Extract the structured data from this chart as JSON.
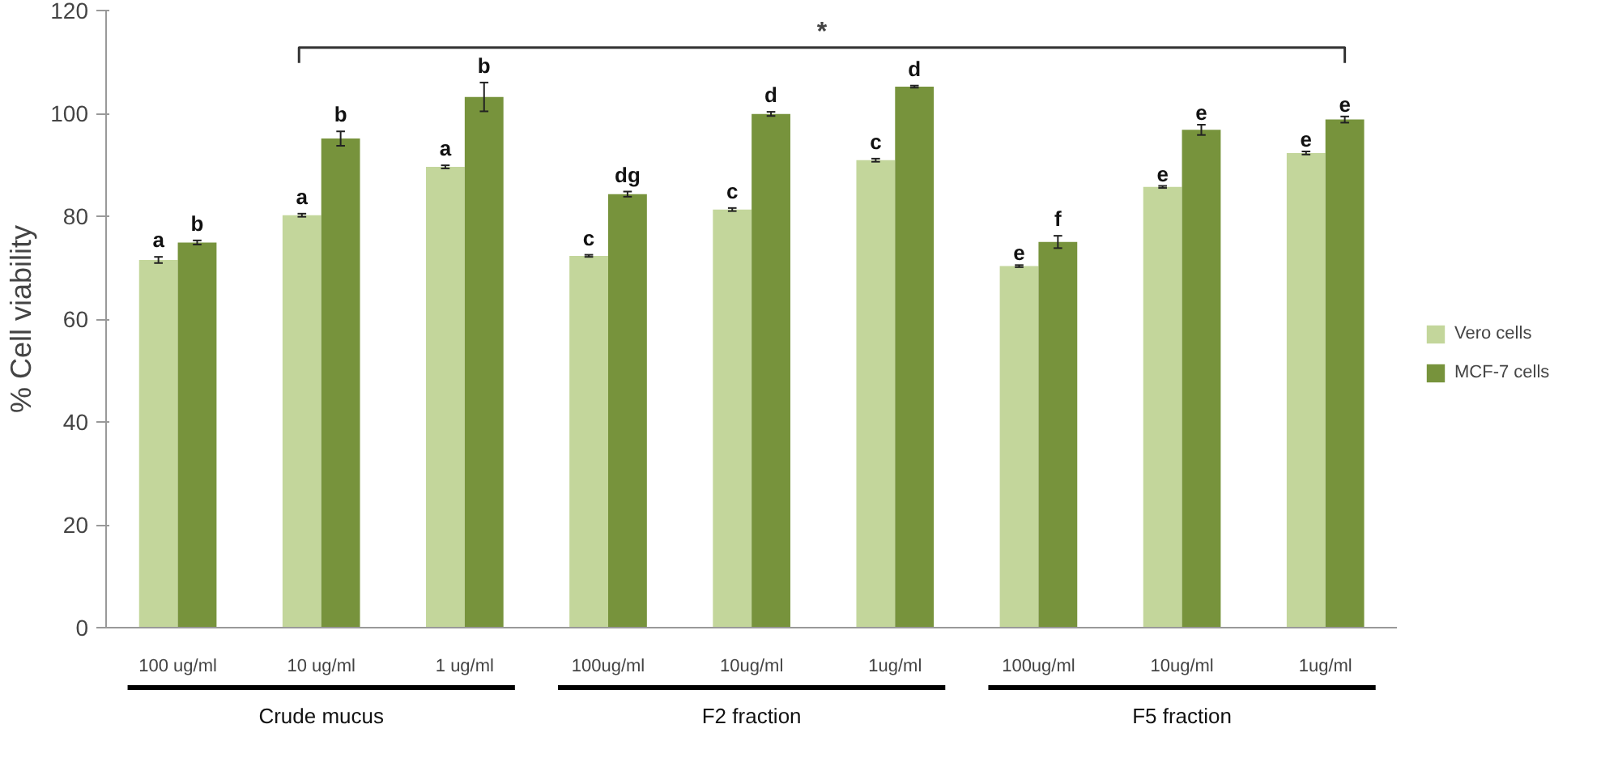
{
  "chart_data": {
    "type": "bar",
    "ylabel": "% Cell viability",
    "categories": [
      "100 ug/ml",
      "10 ug/ml",
      "1 ug/ml",
      "100ug/ml",
      "10ug/ml",
      "1ug/ml",
      "100ug/ml",
      "10ug/ml",
      "1ug/ml"
    ],
    "series": [
      {
        "name": "Vero cells",
        "color": "#c3d69b",
        "values": [
          71.5,
          80.2,
          89.6,
          72.3,
          81.3,
          90.9,
          70.3,
          85.7,
          92.3
        ],
        "errors": [
          0.6,
          0.3,
          0.3,
          0.2,
          0.3,
          0.3,
          0.2,
          0.2,
          0.3
        ],
        "value_labels": [
          "a",
          "a",
          "a",
          "c",
          "c",
          "c",
          "e",
          "e",
          "e"
        ]
      },
      {
        "name": "MCF-7 cells",
        "color": "#77933c",
        "values": [
          74.9,
          95.1,
          103.2,
          84.3,
          99.9,
          105.2,
          75.0,
          96.8,
          98.8
        ],
        "errors": [
          0.4,
          1.4,
          2.8,
          0.5,
          0.4,
          0.2,
          1.2,
          1.0,
          0.6
        ],
        "value_labels": [
          "b",
          "b",
          "b",
          "dg",
          "d",
          "d",
          "f",
          "e",
          "e"
        ]
      }
    ],
    "ylim": [
      0,
      120
    ],
    "yticks": [
      0,
      20,
      40,
      60,
      80,
      100,
      120
    ],
    "grid": false,
    "legend": "right",
    "annotations": [
      "Crude mucus",
      "F2 fraction",
      "F5 fraction",
      "*"
    ]
  }
}
